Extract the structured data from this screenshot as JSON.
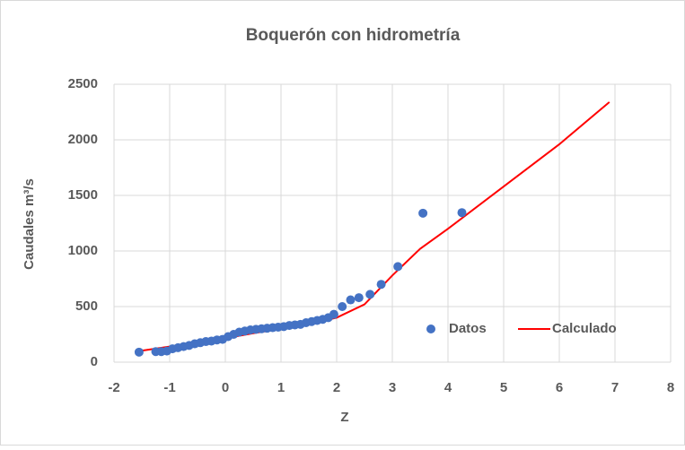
{
  "chart_data": {
    "type": "scatter",
    "title": "Boquerón con hidrometría",
    "xlabel": "Z",
    "ylabel": "Caudales m³/s",
    "xlim": [
      -2,
      8
    ],
    "xticks": [
      -2,
      -1,
      0,
      1,
      2,
      3,
      4,
      5,
      6,
      7,
      8
    ],
    "ylim": [
      0,
      2500
    ],
    "yticks": [
      0,
      500,
      1000,
      1500,
      2000,
      2500
    ],
    "grid": true,
    "legend": "lower right",
    "series": [
      {
        "name": "Datos",
        "type": "scatter",
        "color": "#4472c4",
        "x": [
          -1.55,
          -1.25,
          -1.15,
          -1.05,
          -0.95,
          -0.85,
          -0.75,
          -0.65,
          -0.55,
          -0.45,
          -0.35,
          -0.25,
          -0.15,
          -0.05,
          0.05,
          0.15,
          0.25,
          0.35,
          0.45,
          0.55,
          0.65,
          0.75,
          0.85,
          0.95,
          1.05,
          1.15,
          1.25,
          1.35,
          1.45,
          1.55,
          1.65,
          1.75,
          1.85,
          1.95,
          2.1,
          2.25,
          2.4,
          2.6,
          2.8,
          3.1,
          3.55,
          4.25
        ],
        "values": [
          90,
          95,
          95,
          100,
          120,
          130,
          140,
          150,
          165,
          175,
          185,
          190,
          200,
          205,
          230,
          250,
          270,
          280,
          290,
          295,
          300,
          305,
          310,
          315,
          320,
          330,
          335,
          340,
          355,
          365,
          375,
          385,
          400,
          430,
          500,
          560,
          580,
          610,
          700,
          860,
          1340,
          1345
        ]
      },
      {
        "name": "Calculado",
        "type": "line",
        "color": "#ff0000",
        "x": [
          -1.55,
          -1,
          -0.5,
          0,
          0.5,
          1,
          1.5,
          2,
          2.5,
          3,
          3.5,
          4,
          5,
          6,
          6.9
        ],
        "values": [
          100,
          140,
          175,
          215,
          260,
          300,
          345,
          400,
          520,
          780,
          1020,
          1200,
          1580,
          1960,
          2340
        ]
      }
    ]
  }
}
